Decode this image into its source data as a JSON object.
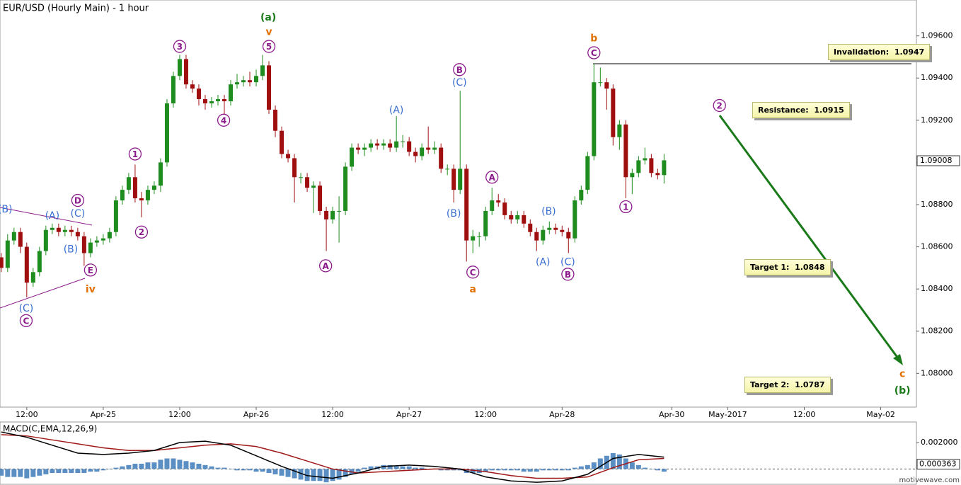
{
  "chart_data": {
    "type": "candlestick",
    "title": "EUR/USD (Hourly Main) - 1 hour",
    "ylim": [
      1.0784,
      1.0977
    ],
    "xlim": [
      -0.2,
      143.6
    ],
    "yticks": [
      {
        "value": 1.08,
        "label": "1.08000"
      },
      {
        "value": 1.082,
        "label": "1.08200"
      },
      {
        "value": 1.084,
        "label": "1.08400"
      },
      {
        "value": 1.086,
        "label": "1.08600"
      },
      {
        "value": 1.088,
        "label": "1.08800"
      },
      {
        "value": 1.09,
        "label": "1.09000"
      },
      {
        "value": 1.092,
        "label": "1.09200"
      },
      {
        "value": 1.094,
        "label": "1.09400"
      },
      {
        "value": 1.096,
        "label": "1.09600"
      }
    ],
    "xticks": [
      {
        "value": 4,
        "label": "12:00"
      },
      {
        "value": 16,
        "label": "Apr-25"
      },
      {
        "value": 28,
        "label": "12:00"
      },
      {
        "value": 40,
        "label": "Apr-26"
      },
      {
        "value": 52,
        "label": "12:00"
      },
      {
        "value": 64,
        "label": "Apr-27"
      },
      {
        "value": 76,
        "label": "12:00"
      },
      {
        "value": 88,
        "label": "Apr-28"
      },
      {
        "value": 105.2,
        "label": "Apr-30"
      },
      {
        "value": 114,
        "label": "May-2017"
      },
      {
        "value": 126,
        "label": "12:00"
      },
      {
        "value": 138,
        "label": "May-02"
      }
    ],
    "up_color": "#1e8c1e",
    "down_color": "#a00f0f",
    "last_price": 1.09008,
    "open": [
      1.0855,
      1.085,
      1.0863,
      1.0867,
      1.086,
      1.0843,
      1.0848,
      1.0858,
      1.0868,
      1.0869,
      1.0867,
      1.0868,
      1.0867,
      1.0865,
      1.0857,
      1.0862,
      1.0863,
      1.0864,
      1.0867,
      1.0882,
      1.0887,
      1.0893,
      1.0883,
      1.0882,
      1.0887,
      1.0889,
      1.09,
      1.0928,
      1.0941,
      1.0949,
      1.0937,
      1.0935,
      1.093,
      1.0928,
      1.0929,
      1.093,
      1.0929,
      1.0937,
      1.0938,
      1.0939,
      1.0938,
      1.0941,
      1.0946,
      1.0925,
      1.0915,
      1.0904,
      1.0902,
      1.0893,
      1.0893,
      1.0888,
      1.0889,
      1.0877,
      1.0873,
      1.0877,
      1.0877,
      1.0898,
      1.0907,
      1.0906,
      1.0907,
      1.0909,
      1.0908,
      1.0909,
      1.0907,
      1.091,
      1.091,
      1.0905,
      1.0903,
      1.0907,
      1.0906,
      1.0907,
      1.0897,
      1.0897,
      1.0887,
      1.0897,
      1.0863,
      1.0865,
      1.0865,
      1.0877,
      1.0882,
      1.0881,
      1.0875,
      1.0873,
      1.0875,
      1.0871,
      1.0867,
      1.0863,
      1.0868,
      1.0869,
      1.0868,
      1.0867,
      1.0864,
      1.0882,
      1.0887,
      1.0903,
      1.0938,
      1.0938,
      1.0935,
      1.0912,
      1.0918,
      1.0893,
      1.0895,
      1.0901,
      1.0902,
      1.0895,
      1.0894
    ],
    "high": [
      1.0857,
      1.0866,
      1.0869,
      1.0869,
      1.0862,
      1.085,
      1.086,
      1.087,
      1.0871,
      1.0871,
      1.087,
      1.087,
      1.0869,
      1.0867,
      1.0864,
      1.0865,
      1.0866,
      1.0869,
      1.0884,
      1.0889,
      1.0895,
      1.0899,
      1.0886,
      1.0889,
      1.0891,
      1.0902,
      1.093,
      1.0943,
      1.0951,
      1.0951,
      1.0939,
      1.0937,
      1.0932,
      1.0931,
      1.0932,
      1.0932,
      1.0939,
      1.0942,
      1.0941,
      1.0943,
      1.0944,
      1.0951,
      1.0948,
      1.0927,
      1.0917,
      1.0906,
      1.0904,
      1.0895,
      1.0895,
      1.0891,
      1.0891,
      1.0879,
      1.0879,
      1.0884,
      1.09,
      1.0909,
      1.0909,
      1.0909,
      1.0911,
      1.0911,
      1.0911,
      1.0911,
      1.0922,
      1.0913,
      1.0912,
      1.0907,
      1.0909,
      1.0917,
      1.091,
      1.0909,
      1.0899,
      1.0899,
      1.0934,
      1.0899,
      1.0868,
      1.0867,
      1.0879,
      1.0888,
      1.0885,
      1.0883,
      1.0877,
      1.0877,
      1.0877,
      1.0873,
      1.0869,
      1.087,
      1.0872,
      1.0871,
      1.087,
      1.0869,
      1.0884,
      1.0889,
      1.0905,
      1.0947,
      1.0945,
      1.094,
      1.0937,
      1.092,
      1.092,
      1.0897,
      1.0903,
      1.0907,
      1.0904,
      1.0897,
      1.0904
    ],
    "low": [
      1.0848,
      1.0848,
      1.0861,
      1.0857,
      1.0836,
      1.0841,
      1.0846,
      1.0856,
      1.0866,
      1.0865,
      1.0865,
      1.0865,
      1.0863,
      1.0851,
      1.0855,
      1.086,
      1.0861,
      1.0862,
      1.0865,
      1.088,
      1.0885,
      1.0881,
      1.0874,
      1.088,
      1.0885,
      1.0886,
      1.0898,
      1.0926,
      1.0939,
      1.0935,
      1.0933,
      1.0927,
      1.0925,
      1.0926,
      1.0927,
      1.0922,
      1.0927,
      1.0935,
      1.0936,
      1.0936,
      1.0936,
      1.0939,
      1.0923,
      1.0912,
      1.0902,
      1.09,
      1.0881,
      1.089,
      1.0886,
      1.0876,
      1.0875,
      1.0858,
      1.0871,
      1.0862,
      1.0875,
      1.0896,
      1.0904,
      1.0903,
      1.0905,
      1.0906,
      1.0906,
      1.0905,
      1.0905,
      1.0907,
      1.0903,
      1.09,
      1.0901,
      1.0904,
      1.0904,
      1.0895,
      1.0894,
      1.0881,
      1.0885,
      1.0853,
      1.0857,
      1.086,
      1.0863,
      1.0875,
      1.0879,
      1.0873,
      1.0871,
      1.0871,
      1.0869,
      1.0865,
      1.0858,
      1.0861,
      1.0866,
      1.0866,
      1.0865,
      1.0857,
      1.0862,
      1.088,
      1.0885,
      1.0901,
      1.0936,
      1.0925,
      1.0908,
      1.0906,
      1.0883,
      1.0885,
      1.0893,
      1.0899,
      1.0893,
      1.0892,
      1.089
    ],
    "close": [
      1.085,
      1.0863,
      1.0867,
      1.086,
      1.0843,
      1.0848,
      1.0858,
      1.0868,
      1.0869,
      1.0867,
      1.0868,
      1.0867,
      1.0865,
      1.0857,
      1.0862,
      1.0863,
      1.0864,
      1.0867,
      1.0882,
      1.0887,
      1.0893,
      1.0883,
      1.0882,
      1.0887,
      1.0889,
      1.09,
      1.0928,
      1.0941,
      1.0949,
      1.0937,
      1.0935,
      1.093,
      1.0928,
      1.0929,
      1.093,
      1.0929,
      1.0937,
      1.0938,
      1.0939,
      1.0938,
      1.0941,
      1.0946,
      1.0925,
      1.0915,
      1.0904,
      1.0902,
      1.0893,
      1.0893,
      1.0888,
      1.0889,
      1.0877,
      1.0873,
      1.0877,
      1.0877,
      1.0898,
      1.0907,
      1.0906,
      1.0907,
      1.0909,
      1.0908,
      1.0909,
      1.0907,
      1.091,
      1.091,
      1.0905,
      1.0903,
      1.0907,
      1.0906,
      1.0907,
      1.0897,
      1.0897,
      1.0887,
      1.0897,
      1.0863,
      1.0865,
      1.0865,
      1.0877,
      1.0882,
      1.0881,
      1.0875,
      1.0873,
      1.0875,
      1.0871,
      1.0867,
      1.0863,
      1.0868,
      1.0869,
      1.0868,
      1.0867,
      1.0864,
      1.0882,
      1.0887,
      1.0903,
      1.0938,
      1.0938,
      1.0935,
      1.0912,
      1.0918,
      1.0893,
      1.0895,
      1.0901,
      1.0902,
      1.0895,
      1.0894,
      1.0901
    ],
    "annotations": [
      {
        "text": "(B)",
        "x": 0.6,
        "y": 1.0878,
        "color": "#3a6fd0",
        "circled": false
      },
      {
        "text": "(A)",
        "x": 8,
        "y": 1.0875,
        "color": "#3a6fd0",
        "circled": false
      },
      {
        "text": "D",
        "x": 12,
        "y": 1.0882,
        "color": "#8b1a8b",
        "circled": true
      },
      {
        "text": "(C)",
        "x": 12,
        "y": 1.0876,
        "color": "#3a6fd0",
        "circled": false
      },
      {
        "text": "(B)",
        "x": 10.9,
        "y": 1.0859,
        "color": "#3a6fd0",
        "circled": false
      },
      {
        "text": "E",
        "x": 14,
        "y": 1.0849,
        "color": "#8b1a8b",
        "circled": true
      },
      {
        "text": "iv",
        "x": 14,
        "y": 1.084,
        "color": "#e07000",
        "circled": false
      },
      {
        "text": "(C)",
        "x": 3.9,
        "y": 1.0831,
        "color": "#3a6fd0",
        "circled": false
      },
      {
        "text": "C",
        "x": 3.9,
        "y": 1.0825,
        "color": "#8b1a8b",
        "circled": true
      },
      {
        "text": "1",
        "x": 21,
        "y": 1.0904,
        "color": "#8b1a8b",
        "circled": true
      },
      {
        "text": "2",
        "x": 22,
        "y": 1.0867,
        "color": "#8b1a8b",
        "circled": true
      },
      {
        "text": "3",
        "x": 28,
        "y": 1.0955,
        "color": "#8b1a8b",
        "circled": true
      },
      {
        "text": "4",
        "x": 34.9,
        "y": 1.092,
        "color": "#8b1a8b",
        "circled": true
      },
      {
        "text": "5",
        "x": 42,
        "y": 1.0955,
        "color": "#8b1a8b",
        "circled": true
      },
      {
        "text": "v",
        "x": 42,
        "y": 1.0962,
        "color": "#e07000",
        "circled": false
      },
      {
        "text": "(a)",
        "x": 41.9,
        "y": 1.0969,
        "color": "#1a7a1a",
        "circled": false
      },
      {
        "text": "A",
        "x": 50.9,
        "y": 1.0851,
        "color": "#8b1a8b",
        "circled": true
      },
      {
        "text": "(A)",
        "x": 62,
        "y": 1.0925,
        "color": "#3a6fd0",
        "circled": false
      },
      {
        "text": "B",
        "x": 71.9,
        "y": 1.0944,
        "color": "#8b1a8b",
        "circled": true
      },
      {
        "text": "(C)",
        "x": 71.9,
        "y": 1.0938,
        "color": "#3a6fd0",
        "circled": false
      },
      {
        "text": "(B)",
        "x": 71,
        "y": 1.0876,
        "color": "#3a6fd0",
        "circled": false
      },
      {
        "text": "C",
        "x": 74,
        "y": 1.0848,
        "color": "#8b1a8b",
        "circled": true
      },
      {
        "text": "a",
        "x": 74,
        "y": 1.084,
        "color": "#e07000",
        "circled": false
      },
      {
        "text": "A",
        "x": 77,
        "y": 1.0893,
        "color": "#8b1a8b",
        "circled": true
      },
      {
        "text": "(B)",
        "x": 85.9,
        "y": 1.0877,
        "color": "#3a6fd0",
        "circled": false
      },
      {
        "text": "(A)",
        "x": 85,
        "y": 1.0853,
        "color": "#3a6fd0",
        "circled": false
      },
      {
        "text": "(C)",
        "x": 88.9,
        "y": 1.0853,
        "color": "#3a6fd0",
        "circled": false
      },
      {
        "text": "B",
        "x": 88.9,
        "y": 1.0847,
        "color": "#8b1a8b",
        "circled": true
      },
      {
        "text": "b",
        "x": 93,
        "y": 1.0959,
        "color": "#e07000",
        "circled": false
      },
      {
        "text": "C",
        "x": 93,
        "y": 1.0952,
        "color": "#8b1a8b",
        "circled": true
      },
      {
        "text": "1",
        "x": 98,
        "y": 1.0879,
        "color": "#8b1a8b",
        "circled": true
      },
      {
        "text": "2",
        "x": 112.7,
        "y": 1.0927,
        "color": "#8b1a8b",
        "circled": true
      },
      {
        "text": "c",
        "x": 141.4,
        "y": 1.08,
        "color": "#e07000",
        "circled": false
      },
      {
        "text": "(b)",
        "x": 141.4,
        "y": 1.0792,
        "color": "#1a7a1a",
        "circled": false
      }
    ],
    "boxes": [
      "Invalidation:  1.0947",
      "Resistance:  1.0915",
      "Target 1:  1.0848",
      "Target 2:  1.0787"
    ],
    "macd": {
      "title": "MACD(C,EMA,12,26,9)",
      "ylim": [
        -0.0011,
        0.0035
      ],
      "yticks": [
        {
          "value": 0.002,
          "label": "0.002000"
        }
      ],
      "last_value": 0.000363,
      "hist_color": "#5b8fc4",
      "line_color": "#000000",
      "signal_color": "#a01818",
      "histogram": [
        -0.0005,
        -0.0006,
        -0.0006,
        -0.0006,
        -0.0007,
        -0.0006,
        -0.0005,
        -0.0004,
        -0.0003,
        -0.0003,
        -0.0003,
        -0.0003,
        -0.0003,
        -0.0003,
        -0.0002,
        -0.0002,
        -0.0001,
        0,
        0.0001,
        0.0002,
        0.0003,
        0.0004,
        0.0004,
        0.0005,
        0.0005,
        0.0007,
        0.0008,
        0.0008,
        0.0007,
        0.0006,
        0.0005,
        0.0004,
        0.0003,
        0.0002,
        0.0001,
        0.0001,
        0,
        -0.0001,
        -0.0001,
        -0.0001,
        -0.0002,
        -0.0002,
        -0.0003,
        -0.0004,
        -0.0005,
        -0.0006,
        -0.0007,
        -0.0008,
        -0.0009,
        -0.0009,
        -0.0009,
        -0.001,
        -0.0009,
        -0.0008,
        -0.0006,
        -0.0004,
        -0.0002,
        0.0001,
        0.0002,
        0.0002,
        0.0003,
        0.0003,
        0.0002,
        0.0002,
        0.0002,
        0.0001,
        0.0001,
        0,
        0,
        -0.0001,
        -0.0001,
        -0.0001,
        -0.0001,
        -0.0003,
        -0.0003,
        -0.0003,
        -0.0002,
        -0.0001,
        -0.0001,
        -0.0001,
        -0.0001,
        -0.0001,
        -0.0002,
        -0.0002,
        -0.0002,
        -0.0001,
        -0.0001,
        -0.0001,
        -0.0001,
        -0.0001,
        0.0001,
        0.0002,
        0.0003,
        0.0005,
        0.0008,
        0.001,
        0.0012,
        0.0011,
        0.0008,
        0.0005,
        0.0003,
        0.0001,
        0,
        -0.0001,
        -0.0002
      ],
      "x": [
        0,
        4,
        8,
        12,
        16,
        20,
        24,
        28,
        32,
        36,
        40,
        44,
        48,
        52,
        56,
        60,
        64,
        68,
        72,
        76,
        80,
        84,
        88,
        92,
        96,
        100,
        104
      ],
      "line": [
        0.0028,
        0.0024,
        0.0018,
        0.0012,
        0.0011,
        0.0012,
        0.0014,
        0.002,
        0.0021,
        0.0018,
        0.001,
        0.0002,
        -0.0005,
        -0.0007,
        -0.0003,
        0.0002,
        0.0003,
        0.0002,
        0,
        -0.0006,
        -0.0009,
        -0.001,
        -0.0009,
        -0.0004,
        0.0008,
        0.0011,
        0.0009
      ],
      "signal": [
        0.0026,
        0.0025,
        0.0022,
        0.0019,
        0.0016,
        0.0014,
        0.0014,
        0.0016,
        0.0018,
        0.0019,
        0.0017,
        0.0012,
        0.0006,
        0,
        -0.0003,
        -0.0002,
        -0.0001,
        0,
        0,
        -0.0002,
        -0.0005,
        -0.0007,
        -0.0007,
        -0.0006,
        0.0001,
        0.0007,
        0.0008
      ]
    },
    "watermark": "motivewave.com"
  }
}
